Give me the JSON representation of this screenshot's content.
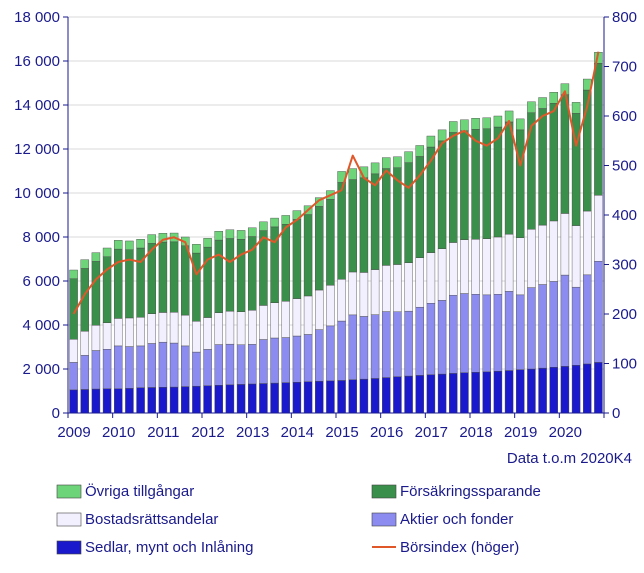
{
  "chart_data": {
    "type": "bar",
    "subtype": "stacked-bar-with-line",
    "note": "Data t.o.m 2020K4",
    "x_tick_labels": [
      "2009",
      "2010",
      "2011",
      "2012",
      "2013",
      "2014",
      "2015",
      "2016",
      "2017",
      "2018",
      "2019",
      "2020"
    ],
    "y_left": {
      "min": 0,
      "max": 18000,
      "ticks": [
        "0",
        "2 000",
        "4 000",
        "6 000",
        "8 000",
        "10 000",
        "12 000",
        "14 000",
        "16 000",
        "18 000"
      ]
    },
    "y_right": {
      "min": 0,
      "max": 800,
      "ticks": [
        "0",
        "100",
        "200",
        "300",
        "400",
        "500",
        "600",
        "700",
        "800"
      ]
    },
    "categories": [
      "2009K1",
      "2009K2",
      "2009K3",
      "2009K4",
      "2010K1",
      "2010K2",
      "2010K3",
      "2010K4",
      "2011K1",
      "2011K2",
      "2011K3",
      "2011K4",
      "2012K1",
      "2012K2",
      "2012K3",
      "2012K4",
      "2013K1",
      "2013K2",
      "2013K3",
      "2013K4",
      "2014K1",
      "2014K2",
      "2014K3",
      "2014K4",
      "2015K1",
      "2015K2",
      "2015K3",
      "2015K4",
      "2016K1",
      "2016K2",
      "2016K3",
      "2016K4",
      "2017K1",
      "2017K2",
      "2017K3",
      "2017K4",
      "2018K1",
      "2018K2",
      "2018K3",
      "2018K4",
      "2019K1",
      "2019K2",
      "2019K3",
      "2019K4",
      "2020K1",
      "2020K2",
      "2020K3",
      "2020K4"
    ],
    "series": [
      {
        "name": "Sedlar, mynt och Inlåning",
        "color": "#1a1acc",
        "axis": "left",
        "values": [
          1050,
          1070,
          1090,
          1100,
          1100,
          1120,
          1150,
          1160,
          1170,
          1180,
          1200,
          1220,
          1240,
          1260,
          1280,
          1300,
          1320,
          1340,
          1360,
          1380,
          1400,
          1420,
          1440,
          1460,
          1480,
          1510,
          1540,
          1570,
          1610,
          1650,
          1680,
          1710,
          1740,
          1770,
          1800,
          1830,
          1850,
          1870,
          1900,
          1930,
          1970,
          2000,
          2040,
          2080,
          2120,
          2170,
          2230,
          2300
        ]
      },
      {
        "name": "Aktier och fonder",
        "color": "#8c8cf0",
        "axis": "left",
        "values": [
          1250,
          1550,
          1750,
          1800,
          1950,
          1900,
          1900,
          2000,
          2050,
          2000,
          1850,
          1550,
          1650,
          1850,
          1850,
          1800,
          1800,
          2000,
          2050,
          2050,
          2100,
          2150,
          2350,
          2500,
          2700,
          2950,
          2850,
          2900,
          3000,
          2950,
          2950,
          3100,
          3250,
          3350,
          3550,
          3600,
          3550,
          3500,
          3500,
          3600,
          3400,
          3700,
          3800,
          3900,
          4150,
          3550,
          4050,
          4600
        ]
      },
      {
        "name": "Bostadsrättsandelar",
        "color": "#f2f0ff",
        "axis": "left",
        "values": [
          1050,
          1100,
          1150,
          1200,
          1250,
          1300,
          1300,
          1350,
          1350,
          1400,
          1400,
          1400,
          1450,
          1450,
          1500,
          1500,
          1550,
          1550,
          1600,
          1650,
          1700,
          1750,
          1800,
          1850,
          1900,
          1950,
          2000,
          2050,
          2100,
          2150,
          2200,
          2250,
          2300,
          2350,
          2400,
          2450,
          2500,
          2550,
          2600,
          2600,
          2600,
          2650,
          2700,
          2750,
          2800,
          2800,
          2900,
          3000
        ]
      },
      {
        "name": "Försäkringssparande",
        "color": "#3a8f4a",
        "axis": "left",
        "values": [
          2750,
          2850,
          2900,
          3000,
          3150,
          3100,
          3150,
          3200,
          3200,
          3200,
          3150,
          3100,
          3200,
          3300,
          3300,
          3300,
          3350,
          3400,
          3450,
          3500,
          3600,
          3700,
          3800,
          3900,
          4400,
          4200,
          4300,
          4350,
          4400,
          4400,
          4550,
          4600,
          4800,
          4900,
          5000,
          4950,
          5000,
          5000,
          5000,
          5100,
          4900,
          5300,
          5300,
          5350,
          5400,
          5100,
          5500,
          6000
        ]
      },
      {
        "name": "Övriga tillgångar",
        "color": "#6ed47a",
        "axis": "left",
        "values": [
          400,
          400,
          400,
          400,
          400,
          400,
          400,
          400,
          400,
          400,
          400,
          400,
          400,
          400,
          400,
          400,
          400,
          400,
          400,
          400,
          400,
          400,
          400,
          400,
          500,
          500,
          500,
          500,
          500,
          500,
          500,
          500,
          500,
          500,
          500,
          500,
          500,
          500,
          500,
          500,
          500,
          500,
          500,
          500,
          500,
          500,
          500,
          500
        ]
      }
    ],
    "line": {
      "name": "Börsindex (höger)",
      "color": "#e0572a",
      "axis": "right",
      "values": [
        200,
        240,
        270,
        290,
        305,
        310,
        305,
        330,
        350,
        355,
        345,
        280,
        310,
        320,
        305,
        320,
        330,
        355,
        345,
        375,
        390,
        410,
        430,
        440,
        450,
        520,
        475,
        460,
        490,
        470,
        455,
        480,
        510,
        545,
        560,
        570,
        550,
        540,
        555,
        590,
        500,
        580,
        600,
        610,
        650,
        540,
        620,
        730
      ]
    },
    "legend": [
      {
        "label": "Övriga tillgångar",
        "swatch": "bar",
        "color": "#6ed47a"
      },
      {
        "label": "Försäkringssparande",
        "swatch": "bar",
        "color": "#3a8f4a"
      },
      {
        "label": "Bostadsrättsandelar",
        "swatch": "bar",
        "color": "#f2f0ff"
      },
      {
        "label": "Aktier och fonder",
        "swatch": "bar",
        "color": "#8c8cf0"
      },
      {
        "label": "Sedlar, mynt och Inlåning",
        "swatch": "bar",
        "color": "#1a1acc"
      },
      {
        "label": "Börsindex (höger)",
        "swatch": "line",
        "color": "#e0572a"
      }
    ],
    "grid": true
  }
}
